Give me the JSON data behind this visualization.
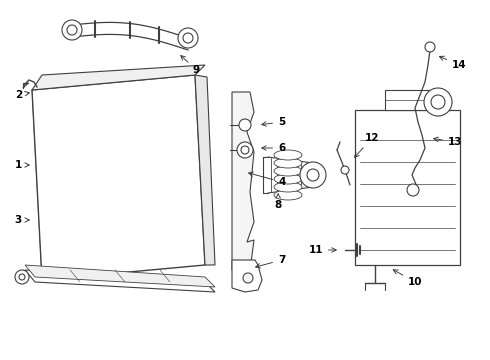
{
  "bg_color": "#ffffff",
  "line_color": "#404040",
  "label_color": "#000000",
  "lw": 0.75
}
